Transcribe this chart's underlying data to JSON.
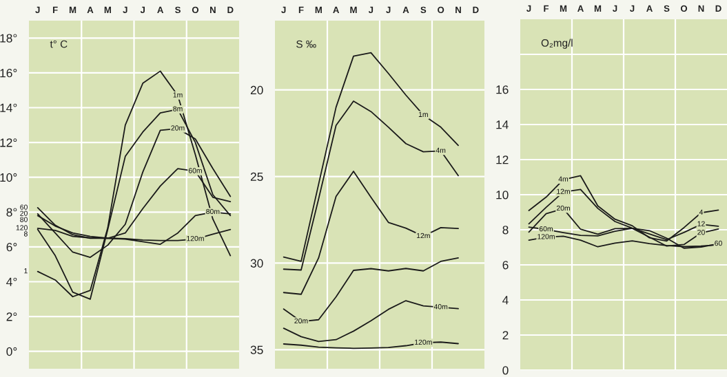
{
  "chart_data": [
    {
      "type": "line",
      "ylabel": "t° C",
      "categories": [
        "J",
        "F",
        "M",
        "A",
        "M",
        "J",
        "J",
        "A",
        "S",
        "O",
        "N",
        "D"
      ],
      "ylim": [
        -1,
        19
      ],
      "yticks": [
        {
          "value": 0,
          "label": "0°"
        },
        {
          "value": 2,
          "label": "2°"
        },
        {
          "value": 4,
          "label": "4°"
        },
        {
          "value": 6,
          "label": "6°"
        },
        {
          "value": 8,
          "label": "8°"
        },
        {
          "value": 10,
          "label": "10°"
        },
        {
          "value": 12,
          "label": "12°"
        },
        {
          "value": 14,
          "label": "14°"
        },
        {
          "value": 16,
          "label": "16°"
        },
        {
          "value": 18,
          "label": "18°"
        }
      ],
      "grid": true,
      "marker": "none",
      "line_style": "solid",
      "series": [
        {
          "color": "#1a1a1a",
          "values": [
            4.59,
            4.1,
            3.14,
            3.5,
            7.1,
            13.0,
            15.4,
            16.1,
            14.7,
            11.3,
            7.6,
            5.5
          ]
        },
        {
          "color": "#1a1a1a",
          "values": [
            7.0,
            5.5,
            3.4,
            3.0,
            7.0,
            11.2,
            12.6,
            13.7,
            13.9,
            12.0,
            9.0,
            7.8
          ]
        },
        {
          "color": "#1a1a1a",
          "values": [
            7.9,
            6.8,
            5.7,
            5.4,
            6.1,
            7.3,
            10.3,
            12.7,
            12.8,
            12.2,
            10.5,
            8.9
          ]
        },
        {
          "color": "#1a1a1a",
          "values": [
            8.25,
            7.25,
            6.7,
            6.5,
            6.5,
            6.8,
            8.2,
            9.5,
            10.5,
            10.35,
            8.85,
            8.6
          ]
        },
        {
          "color": "#1a1a1a",
          "values": [
            7.8,
            7.2,
            6.8,
            6.6,
            6.5,
            6.45,
            6.3,
            6.15,
            6.8,
            7.8,
            8.0,
            7.9
          ]
        },
        {
          "color": "#1a1a1a",
          "values": [
            7.07,
            6.95,
            6.6,
            6.52,
            6.5,
            6.47,
            6.4,
            6.37,
            6.37,
            6.45,
            6.73,
            7.0
          ]
        }
      ],
      "annotations": [
        {
          "text": "1m",
          "x": "S",
          "y": 14.7
        },
        {
          "text": "8m",
          "x": "S",
          "y": 13.9
        },
        {
          "text": "20m",
          "x": "S",
          "y": 12.8
        },
        {
          "text": "60m",
          "x": "O",
          "y": 10.35
        },
        {
          "text": "80m",
          "x": "N",
          "y": 8.0
        },
        {
          "text": "120m",
          "x": "O",
          "y": 6.45
        },
        {
          "text": "60",
          "x": "J",
          "y": 8.25
        },
        {
          "text": "20",
          "x": "J",
          "y": 7.9
        },
        {
          "text": "80",
          "x": "J",
          "y": 7.8
        },
        {
          "text": "8",
          "x": "J",
          "y": 7.0
        },
        {
          "text": "120",
          "x": "J",
          "y": 7.07
        },
        {
          "text": "1",
          "x": "J",
          "y": 4.59
        }
      ]
    },
    {
      "type": "line",
      "ylabel": "S ‰",
      "categories": [
        "J",
        "F",
        "M",
        "A",
        "M",
        "J",
        "J",
        "A",
        "S",
        "O",
        "N",
        "D"
      ],
      "ylim": [
        36.1,
        16
      ],
      "yticks": [
        20,
        25,
        30,
        35
      ],
      "grid": true,
      "marker": "none",
      "line_style": "solid",
      "series": [
        {
          "color": "#1a1a1a",
          "values": [
            29.65,
            29.9,
            25.45,
            21.0,
            18.05,
            17.85,
            19.05,
            20.3,
            21.45,
            22.15,
            23.2,
            null
          ]
        },
        {
          "color": "#1a1a1a",
          "values": [
            30.35,
            30.4,
            26.3,
            22.05,
            20.65,
            21.25,
            22.15,
            23.1,
            23.57,
            23.52,
            24.95,
            null
          ]
        },
        {
          "color": "#1a1a1a",
          "values": [
            31.7,
            31.8,
            29.7,
            26.15,
            24.7,
            26.2,
            27.65,
            27.98,
            28.45,
            27.95,
            28.0,
            null
          ]
        },
        {
          "color": "#1a1a1a",
          "values": [
            32.65,
            33.37,
            33.27,
            31.95,
            30.42,
            30.32,
            30.45,
            30.31,
            30.45,
            29.9,
            29.7,
            null
          ]
        },
        {
          "color": "#1a1a1a",
          "values": [
            33.76,
            34.25,
            34.53,
            34.42,
            33.93,
            33.33,
            32.67,
            32.17,
            32.47,
            32.55,
            32.63,
            null
          ]
        },
        {
          "color": "#1a1a1a",
          "values": [
            34.67,
            34.74,
            34.85,
            34.89,
            34.92,
            34.9,
            34.87,
            34.77,
            34.6,
            34.56,
            34.65,
            null
          ]
        }
      ],
      "annotations": [
        {
          "text": "1m",
          "x": "S",
          "y": 21.45
        },
        {
          "text": "4m",
          "x": "O",
          "y": 23.52
        },
        {
          "text": "12m",
          "x": "S",
          "y": 28.45
        },
        {
          "text": "20m",
          "x": "F",
          "y": 33.37
        },
        {
          "text": "40m",
          "x": "O",
          "y": 32.55
        },
        {
          "text": "120m",
          "x": "S",
          "y": 34.6
        }
      ]
    },
    {
      "type": "line",
      "ylabel": "O₂mg/l",
      "categories": [
        "J",
        "F",
        "M",
        "A",
        "M",
        "J",
        "J",
        "A",
        "S",
        "O",
        "N",
        "D"
      ],
      "ylim": [
        0,
        20
      ],
      "yticks": [
        0,
        2,
        4,
        6,
        8,
        10,
        12,
        14,
        16,
        {
          "value": 18,
          "label": null
        }
      ],
      "grid": true,
      "marker": "none",
      "line_style": "solid",
      "series": [
        {
          "color": "#1a1a1a",
          "values": [
            9.1,
            9.86,
            10.86,
            11.08,
            9.36,
            8.6,
            8.23,
            7.54,
            7.36,
            8.12,
            8.97,
            9.12
          ]
        },
        {
          "color": "#1a1a1a",
          "values": [
            8.34,
            9.28,
            10.15,
            10.3,
            9.22,
            8.47,
            8.09,
            7.76,
            7.44,
            7.85,
            8.31,
            8.2
          ]
        },
        {
          "color": "#1a1a1a",
          "values": [
            7.87,
            8.92,
            9.2,
            8.03,
            7.75,
            8.06,
            8.08,
            7.58,
            7.07,
            7.16,
            7.82,
            8.04
          ]
        },
        {
          "color": "#1a1a1a",
          "values": [
            8.15,
            8.02,
            7.84,
            7.68,
            7.65,
            7.92,
            8.08,
            7.95,
            7.52,
            6.95,
            7.02,
            7.2
          ]
        },
        {
          "color": "#1a1a1a",
          "values": [
            7.41,
            7.58,
            7.63,
            7.41,
            7.03,
            7.24,
            7.37,
            7.21,
            7.1,
            7.04,
            7.07,
            7.14
          ]
        }
      ],
      "annotations": [
        {
          "text": "4m",
          "x": "M",
          "y": 10.86
        },
        {
          "text": "12m",
          "x": "M",
          "y": 10.15
        },
        {
          "text": "20m",
          "x": "M",
          "y": 9.2
        },
        {
          "text": "60m",
          "x": "F",
          "y": 8.02
        },
        {
          "text": "120m",
          "x": "F",
          "y": 7.58
        },
        {
          "text": "4",
          "x": "N",
          "y": 8.97
        },
        {
          "text": "12",
          "x": "N",
          "y": 8.31
        },
        {
          "text": "20",
          "x": "N",
          "y": 7.82
        },
        {
          "text": "60",
          "x": "D",
          "y": 7.2
        }
      ]
    }
  ]
}
